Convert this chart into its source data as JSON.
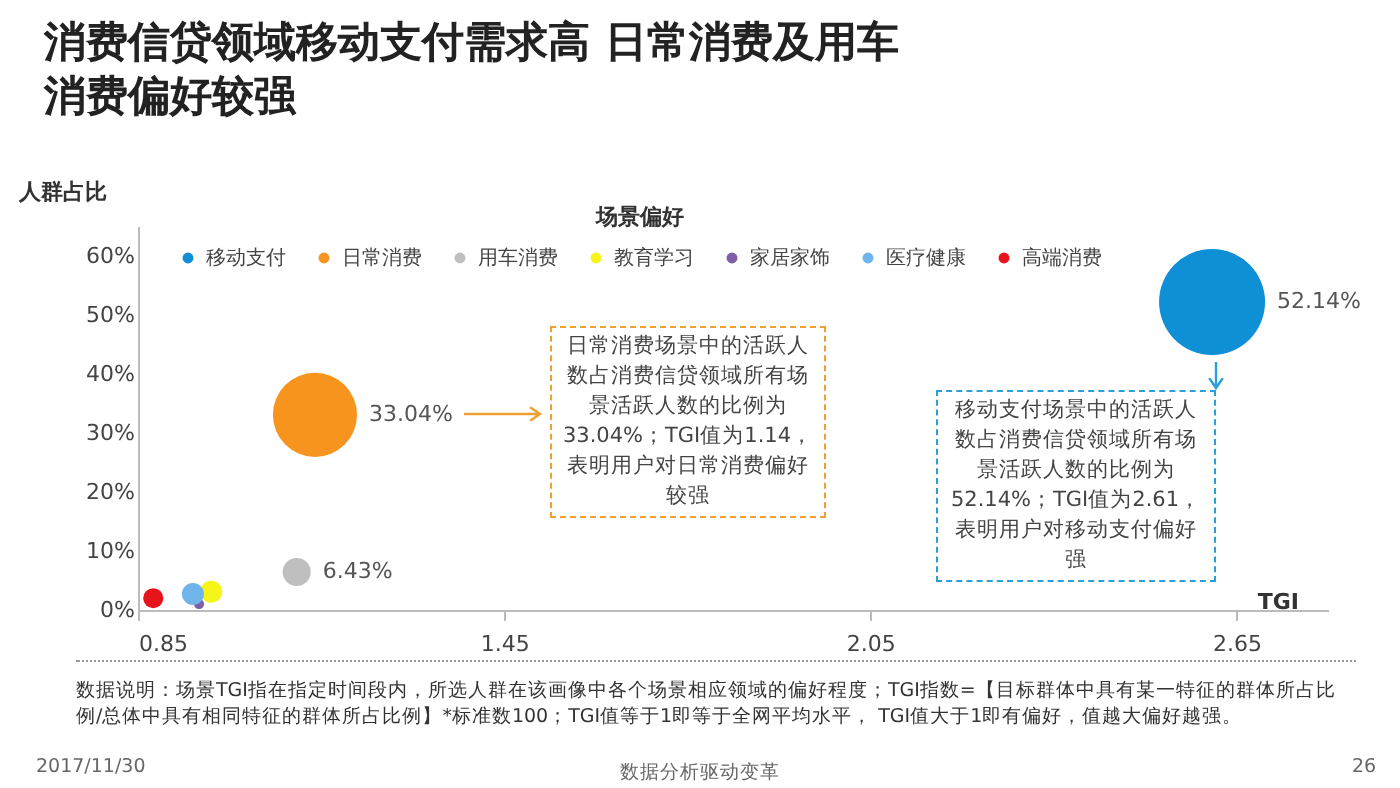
{
  "chart_data": {
    "type": "bubble",
    "title": "消费信贷领域移动支付需求高  日常消费及用车消费偏好较强",
    "xlabel": "TGI",
    "ylabel": "人群占比",
    "legend_title": "场景偏好",
    "legend": "top",
    "grid": false,
    "xlim": [
      0.85,
      2.8
    ],
    "xticks": [
      0.85,
      1.45,
      2.05,
      2.65
    ],
    "ylim": [
      0,
      65
    ],
    "yticks": [
      {
        "value": 0,
        "label": "0%"
      },
      {
        "value": 10,
        "label": "10%"
      },
      {
        "value": 20,
        "label": "20%"
      },
      {
        "value": 30,
        "label": "30%"
      },
      {
        "value": 40,
        "label": "40%"
      },
      {
        "value": 50,
        "label": "50%"
      },
      {
        "value": 60,
        "label": "60%"
      }
    ],
    "series": [
      {
        "name": "移动支付",
        "color": "#0e8fd6",
        "x": [
          2.61
        ],
        "values": [
          52.14
        ],
        "sizes": [
          1
        ],
        "value_labels": [
          "52.14%"
        ]
      },
      {
        "name": "日常消费",
        "color": "#f7941d",
        "x": [
          1.14
        ],
        "values": [
          33.04
        ],
        "sizes": [
          0.63
        ],
        "value_labels": [
          "33.04%"
        ]
      },
      {
        "name": "用车消费",
        "color": "#bfbfbf",
        "x": [
          1.11
        ],
        "values": [
          6.43
        ],
        "sizes": [
          0.07
        ],
        "value_labels": [
          "6.43%"
        ]
      },
      {
        "name": "教育学习",
        "color": "#f5f51a",
        "x": [
          0.97
        ],
        "values": [
          3.1
        ],
        "sizes": [
          0.043
        ],
        "value_labels": [
          null
        ]
      },
      {
        "name": "家居家饰",
        "color": "#7f5fa8",
        "x": [
          0.95
        ],
        "values": [
          1
        ],
        "sizes": [
          0.009
        ],
        "value_labels": [
          null
        ]
      },
      {
        "name": "医疗健康",
        "color": "#6fb4ea",
        "x": [
          0.94
        ],
        "values": [
          2.7
        ],
        "sizes": [
          0.043
        ],
        "value_labels": [
          null
        ]
      },
      {
        "name": "高端消费",
        "color": "#e8141c",
        "x": [
          0.875
        ],
        "values": [
          2
        ],
        "sizes": [
          0.036
        ],
        "value_labels": [
          null
        ]
      }
    ],
    "annotations": [
      "日常消费场景中的活跃人数占消费信贷领域所有场景活跃人数的比例为33.04%；TGI值为1.14，表明用户对日常消费偏好较强",
      "移动支付场景中的活跃人数占消费信贷领域所有场景活跃人数的比例为52.14%；TGI值为2.61，表明用户对移动支付偏好强",
      "数据说明：场景TGI指在指定时间段内，所选人群在该画像中各个场景相应领域的偏好程度；TGI指数=【目标群体中具有某一特征的群体所占比例/总体中具有相同特征的群体所占比例】*标准数100；TGI值等于1即等于全网平均水平， TGI值大于1即有偏好，值越大偏好越强。",
      "2017/11/30",
      "数据分析驱动变革",
      "26"
    ]
  }
}
